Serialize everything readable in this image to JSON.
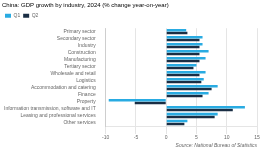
{
  "chart_data": {
    "type": "bar",
    "orientation": "horizontal",
    "title": "China: GDP growth by industry, 2024 (% change year-on-year)",
    "categories": [
      "Primary sector",
      "Secondary sector",
      "Industry",
      "Construction",
      "Manufacturing",
      "Tertiary sector",
      "Wholesale and retail",
      "Logistics",
      "Accommodation and catering",
      "Finance",
      "Property",
      "Information transmission, software and IT",
      "Leasing and professional services",
      "Other services"
    ],
    "series": [
      {
        "name": "Q1",
        "color": "#29abe2",
        "values": [
          3.3,
          6.0,
          6.0,
          7.0,
          6.5,
          5.0,
          6.5,
          6.2,
          8.5,
          7.0,
          -9.5,
          13.0,
          8.5,
          3.5
        ]
      },
      {
        "name": "Q2",
        "color": "#1a2e44",
        "values": [
          3.5,
          5.5,
          5.5,
          5.5,
          5.5,
          4.5,
          5.5,
          5.8,
          7.5,
          6.0,
          -5.2,
          11.0,
          8.0,
          3.0
        ]
      }
    ],
    "xlim": [
      -10,
      15
    ],
    "xticks": [
      -10,
      -5,
      0,
      5,
      10,
      15
    ],
    "grid": true,
    "legend": "top",
    "annotations": [
      "Source: National Bureau of Statistics"
    ]
  }
}
